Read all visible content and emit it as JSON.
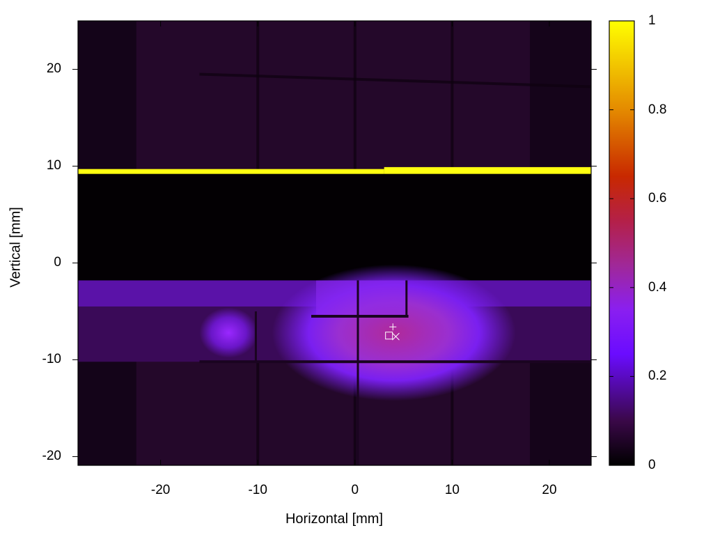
{
  "chart_data": {
    "type": "heatmap",
    "title": "",
    "xlabel": "Horizontal [mm]",
    "ylabel": "Vertical [mm]",
    "xlim": [
      -28.5,
      24.3
    ],
    "ylim": [
      -20.9,
      25
    ],
    "x_ticks": [
      -20,
      -10,
      0,
      10,
      20
    ],
    "y_ticks": [
      -20,
      -10,
      0,
      10,
      20
    ],
    "x_tick_labels": [
      "-20",
      "-10",
      "0",
      "10",
      "20"
    ],
    "y_tick_labels": [
      "-20",
      "-10",
      "0",
      "10",
      "20"
    ],
    "colorbar": {
      "range": [
        0,
        1
      ],
      "ticks": [
        0,
        0.2,
        0.4,
        0.6,
        0.8,
        1
      ],
      "tick_labels": [
        "0",
        "0.2",
        "0.4",
        "0.6",
        "0.8",
        "1"
      ],
      "colormap": "black-purple-blue-red-orange-yellow"
    },
    "features": [
      {
        "kind": "bright_band",
        "description": "saturated yellow horizontal line",
        "y_range": [
          9.3,
          9.7
        ],
        "x_range": [
          -28.5,
          24.3
        ],
        "value": 1.0
      },
      {
        "kind": "dark_band",
        "description": "no-signal region",
        "y_range": [
          -1.8,
          9.2
        ],
        "value": 0.0
      },
      {
        "kind": "beam_spot",
        "center": [
          4,
          -7.5
        ],
        "value_peak": 0.45
      },
      {
        "kind": "side_lobe",
        "center": [
          -13,
          -7
        ],
        "value_peak": 0.25
      }
    ],
    "markers": [
      {
        "symbol": "+",
        "x": 3.9,
        "y": -6.6
      },
      {
        "symbol": "square",
        "x": 3.5,
        "y": -7.5
      },
      {
        "symbol": "x",
        "x": 4.2,
        "y": -7.6
      }
    ],
    "colors": {
      "c0": "#000000",
      "c01": "#2a0a2e",
      "c02": "#5a10a0",
      "c03": "#7a1fff",
      "c04": "#8a2aff",
      "c045": "#a02aa0",
      "c05": "#b02080",
      "c06": "#c02000",
      "c08": "#e08000",
      "c10": "#ffff00"
    }
  }
}
